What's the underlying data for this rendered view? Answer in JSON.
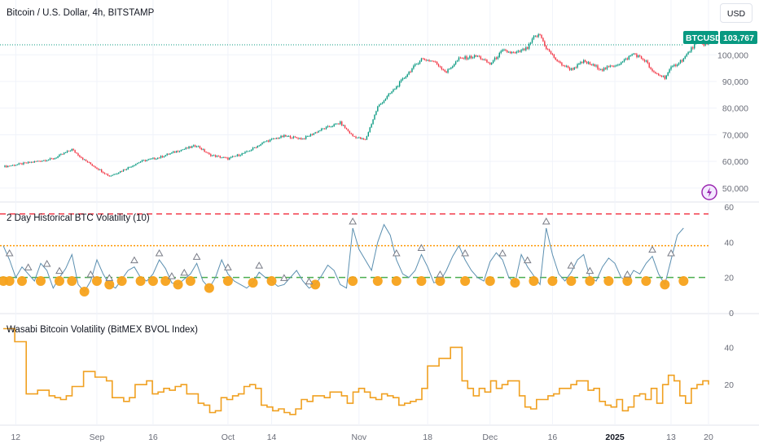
{
  "header": {
    "symbol_title": "Bitcoin / U.S. Dollar, 4h, BITSTAMP",
    "currency_button": "USD",
    "ticker_tag": "BTCUSD",
    "price_tag": "103,767"
  },
  "colors": {
    "up": "#089981",
    "down": "#f23645",
    "tag_bg": "#089981",
    "vol_line": "#5b8fb0",
    "bvol_line": "#f0a020",
    "dot": "#f7a21b",
    "line_red": "#f23645",
    "line_orange": "#ff9800",
    "line_green": "#4caf50",
    "grid": "#f0f3fa"
  },
  "indicator_labels": {
    "volatility": "2 Day Historical BTC Volatility (10)",
    "bvol": "Wasabi Bitcoin Volatility (BitMEX BVOL Index)"
  },
  "chart_data": [
    {
      "type": "candlestick",
      "title": "Bitcoin / U.S. Dollar, 4h, BITSTAMP",
      "ylim": [
        46000,
        112000
      ],
      "y_ticks": [
        "50,000",
        "60,000",
        "70,000",
        "80,000",
        "90,000",
        "100,000"
      ],
      "y_tick_values": [
        50000,
        60000,
        70000,
        80000,
        90000,
        100000
      ],
      "last_price": 103767,
      "x_ticks": [
        "12",
        "Sep",
        "16",
        "Oct",
        "14",
        "Nov",
        "18",
        "Dec",
        "16",
        "2025",
        "13",
        "20"
      ],
      "x_tick_index": [
        2,
        15,
        24,
        36,
        43,
        57,
        68,
        78,
        88,
        98,
        107,
        113
      ],
      "close_path": [
        [
          0,
          58000
        ],
        [
          4,
          59500
        ],
        [
          8,
          61000
        ],
        [
          11,
          64500
        ],
        [
          13,
          60500
        ],
        [
          15,
          57500
        ],
        [
          17,
          54500
        ],
        [
          19,
          56500
        ],
        [
          22,
          60000
        ],
        [
          25,
          61500
        ],
        [
          28,
          64000
        ],
        [
          31,
          66000
        ],
        [
          33,
          62500
        ],
        [
          36,
          61000
        ],
        [
          39,
          63500
        ],
        [
          42,
          67500
        ],
        [
          45,
          69500
        ],
        [
          48,
          68500
        ],
        [
          51,
          72000
        ],
        [
          54,
          74500
        ],
        [
          56,
          69500
        ],
        [
          58,
          68000
        ],
        [
          60,
          80500
        ],
        [
          63,
          88000
        ],
        [
          65,
          93500
        ],
        [
          67,
          98500
        ],
        [
          69,
          97500
        ],
        [
          71,
          93500
        ],
        [
          73,
          98500
        ],
        [
          76,
          99500
        ],
        [
          78,
          96500
        ],
        [
          80,
          101500
        ],
        [
          82,
          100500
        ],
        [
          84,
          102500
        ],
        [
          85,
          106500
        ],
        [
          86,
          107500
        ],
        [
          87,
          102500
        ],
        [
          89,
          97000
        ],
        [
          91,
          94500
        ],
        [
          93,
          97500
        ],
        [
          96,
          94500
        ],
        [
          99,
          97000
        ],
        [
          101,
          100500
        ],
        [
          103,
          97500
        ],
        [
          104,
          93500
        ],
        [
          106,
          91500
        ],
        [
          107,
          95000
        ],
        [
          109,
          98500
        ],
        [
          111,
          104500
        ],
        [
          113,
          103767
        ]
      ]
    },
    {
      "type": "line",
      "name": "2 Day Historical BTC Volatility (10)",
      "ylim": [
        0,
        60
      ],
      "y_ticks": [
        "0",
        "20",
        "40",
        "60"
      ],
      "y_tick_values": [
        0,
        20,
        40,
        60
      ],
      "reference_lines": [
        56,
        38,
        20
      ],
      "values": [
        38,
        30,
        20,
        26,
        22,
        18,
        28,
        24,
        14,
        20,
        25,
        33,
        16,
        12,
        18,
        30,
        22,
        16,
        14,
        19,
        24,
        26,
        20,
        18,
        22,
        30,
        25,
        17,
        16,
        19,
        22,
        28,
        18,
        14,
        20,
        30,
        22,
        18,
        16,
        14,
        17,
        23,
        20,
        18,
        15,
        16,
        20,
        24,
        18,
        14,
        16,
        21,
        27,
        24,
        16,
        14,
        48,
        36,
        30,
        24,
        40,
        50,
        44,
        30,
        22,
        20,
        24,
        33,
        26,
        17,
        18,
        24,
        32,
        38,
        30,
        24,
        20,
        18,
        29,
        34,
        30,
        20,
        17,
        33,
        26,
        21,
        16,
        48,
        33,
        22,
        18,
        23,
        30,
        33,
        20,
        18,
        26,
        31,
        28,
        20,
        18,
        24,
        22,
        28,
        32,
        22,
        16,
        30,
        44,
        48
      ],
      "markers": {
        "circle_indices": [
          0,
          1,
          3,
          6,
          9,
          11,
          13,
          15,
          17,
          19,
          22,
          24,
          26,
          28,
          30,
          33,
          36,
          40,
          43,
          50,
          56,
          60,
          63,
          67,
          70,
          74,
          78,
          82,
          85,
          88,
          91,
          94,
          97,
          100,
          103,
          106,
          109
        ],
        "triangle_indices": [
          1,
          4,
          7,
          9,
          14,
          17,
          21,
          25,
          27,
          29,
          31,
          36,
          41,
          45,
          49,
          56,
          63,
          67,
          70,
          74,
          80,
          84,
          87,
          91,
          94,
          100,
          104,
          107
        ]
      }
    },
    {
      "type": "line",
      "name": "Wasabi Bitcoin Volatility (BitMEX BVOL Index)",
      "ylim": [
        0,
        55
      ],
      "y_ticks": [
        "20",
        "40"
      ],
      "y_tick_values": [
        20,
        40
      ],
      "values": [
        50,
        50,
        43,
        43,
        15,
        15,
        17,
        17,
        14,
        13,
        12,
        14,
        19,
        19,
        27,
        27,
        24,
        24,
        22,
        13,
        13,
        11,
        13,
        20,
        20,
        22,
        15,
        16,
        18,
        17,
        19,
        20,
        15,
        15,
        10,
        9,
        5,
        6,
        13,
        12,
        14,
        15,
        19,
        20,
        18,
        9,
        8,
        6,
        7,
        5,
        4,
        7,
        12,
        11,
        14,
        14,
        13,
        16,
        16,
        14,
        10,
        16,
        18,
        16,
        13,
        12,
        15,
        14,
        13,
        9,
        10,
        11,
        12,
        18,
        30,
        30,
        34,
        34,
        40,
        40,
        22,
        18,
        14,
        18,
        16,
        22,
        18,
        20,
        22,
        22,
        14,
        8,
        7,
        12,
        12,
        14,
        15,
        18,
        18,
        20,
        22,
        22,
        17,
        18,
        11,
        9,
        8,
        12,
        6,
        8,
        14,
        15,
        12,
        18,
        10,
        20,
        25,
        22,
        14,
        10,
        18,
        20,
        22,
        20
      ]
    }
  ]
}
